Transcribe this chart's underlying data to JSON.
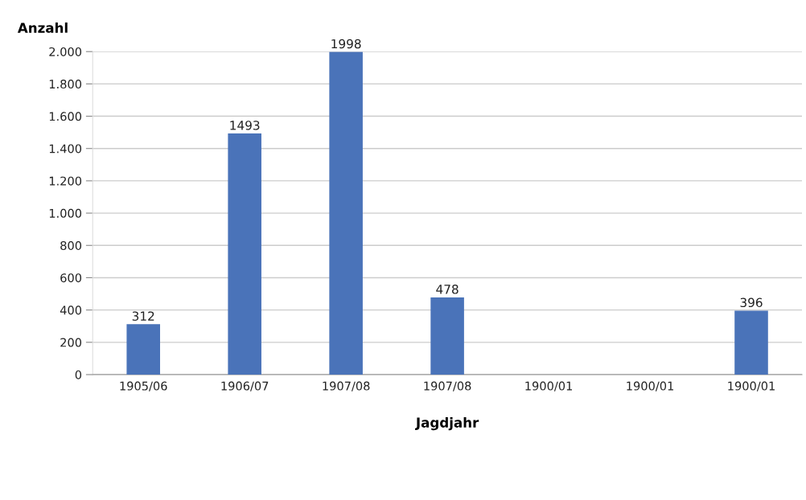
{
  "chart_data": {
    "type": "bar",
    "xlabel": "Jagdjahr",
    "ylabel": "Anzahl",
    "categories": [
      "1905/06",
      "1906/07",
      "1907/08",
      "1907/08",
      "1900/01",
      "1900/01",
      "1900/01"
    ],
    "values": [
      312,
      1493,
      1998,
      478,
      null,
      null,
      396
    ],
    "color": "#4a73b9",
    "ylim": [
      0,
      2000
    ],
    "yticks": [
      0,
      200,
      400,
      600,
      800,
      {
        "value": 1000,
        "label": "1.000"
      },
      {
        "value": 1200,
        "label": "1.200"
      },
      {
        "value": 1400,
        "label": "1.400"
      },
      {
        "value": 1600,
        "label": "1.600"
      },
      {
        "value": 1800,
        "label": "1.800"
      },
      {
        "value": 2000,
        "label": "2.000"
      }
    ],
    "grid": "y",
    "data_labels": true
  }
}
